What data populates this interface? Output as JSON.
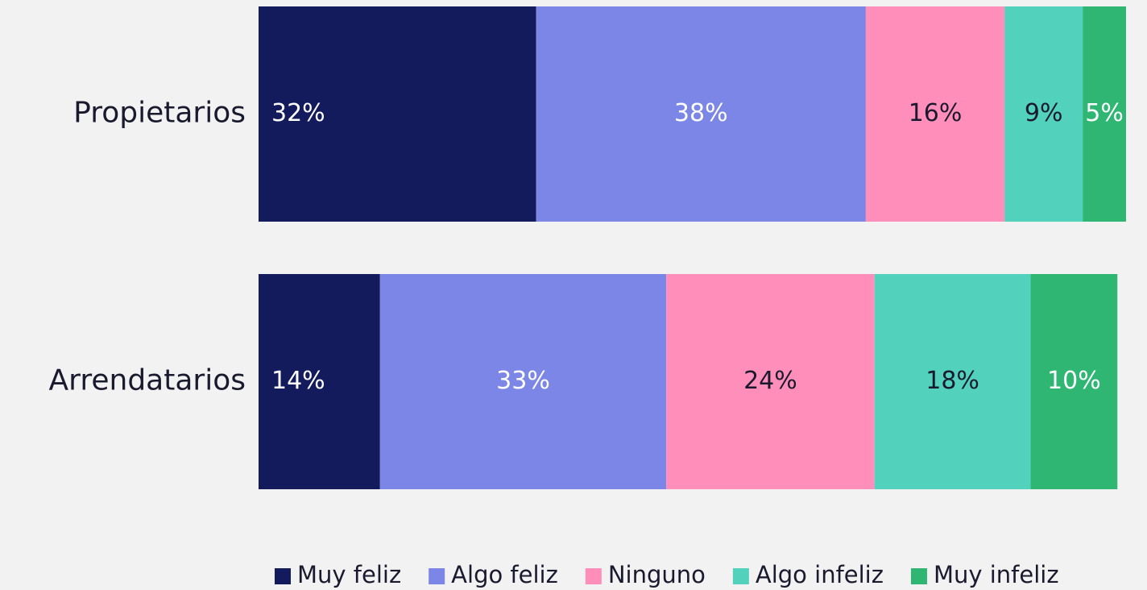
{
  "chart_data": {
    "type": "stacked_bar_horizontal",
    "categories": [
      "Propietarios",
      "Arrendatarios"
    ],
    "xlim": [
      0,
      100
    ],
    "legend": "bottom",
    "series": [
      {
        "name": "Muy feliz",
        "color": "#131b5c",
        "label_color": "#ffffff",
        "values": [
          32,
          14
        ],
        "value_labels": [
          "32%",
          "14%"
        ]
      },
      {
        "name": "Algo feliz",
        "color": "#7b86e6",
        "label_color": "#ffffff",
        "values": [
          38,
          33
        ],
        "value_labels": [
          "38%",
          "33%"
        ]
      },
      {
        "name": "Ninguno",
        "color": "#ff8fba",
        "label_color": "#1a1a2e",
        "values": [
          16,
          24
        ],
        "value_labels": [
          "16%",
          "24%"
        ]
      },
      {
        "name": "Algo infeliz",
        "color": "#52d1bc",
        "label_color": "#1a1a2e",
        "values": [
          9,
          18
        ],
        "value_labels": [
          "9%",
          "18%"
        ]
      },
      {
        "name": "Muy infeliz",
        "color": "#2fb673",
        "label_color": "#ffffff",
        "values": [
          5,
          10
        ],
        "value_labels": [
          "5%",
          "10%"
        ]
      }
    ]
  }
}
